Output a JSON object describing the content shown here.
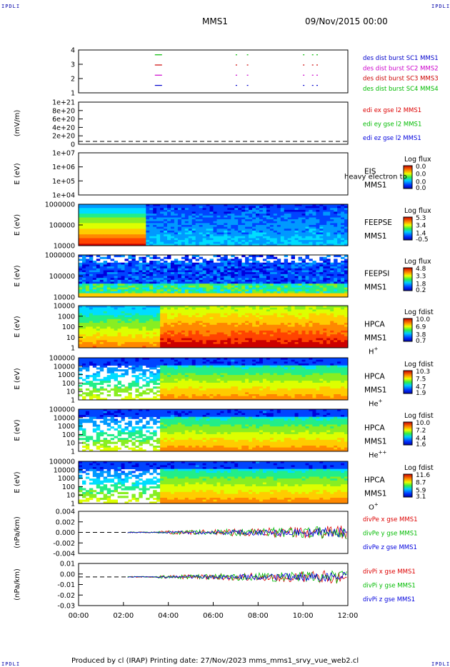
{
  "header": {
    "title": "MMS1",
    "date": "09/Nov/2015 00:00"
  },
  "corner_marks": {
    "text": "IPDLI"
  },
  "footer": {
    "text": "Produced by cl (IRAP)   Printing date: 27/Nov/2023   mms_mms1_srvy_vue_web2.cl"
  },
  "colors": {
    "sc1": "#0000cc",
    "sc2": "#cc00cc",
    "sc3": "#cc0000",
    "sc4": "#00bb00",
    "x": "#dd0000",
    "y": "#00bb00",
    "z": "#0000dd"
  },
  "chart_data": [
    {
      "type": "timeline",
      "ylabel": "",
      "ticks": [
        "4",
        "3",
        "2",
        "1"
      ],
      "legend": [
        {
          "text": "des dist burst SC1 MMS1",
          "color": "#0000cc"
        },
        {
          "text": "des dist burst SC2 MMS2",
          "color": "#cc00cc"
        },
        {
          "text": "des dist burst SC3 MMS3",
          "color": "#cc0000"
        },
        {
          "text": "des dist burst SC4 MMS4",
          "color": "#00bb00"
        }
      ],
      "bursts_hours": [
        3.4,
        7.0,
        7.5,
        10.0,
        10.4,
        10.6
      ]
    },
    {
      "type": "line",
      "ylabel": "(mV/m)",
      "ticks": [
        "1e+21",
        "8e+20",
        "6e+20",
        "4e+20",
        "2e+20",
        "0"
      ],
      "legend": [
        {
          "text": "edi ex gse l2 MMS1",
          "color": "#dd0000"
        },
        {
          "text": "edi ey gse l2 MMS1",
          "color": "#00bb00"
        },
        {
          "text": "edi ez gse l2 MMS1",
          "color": "#0000dd"
        }
      ]
    },
    {
      "type": "heatmap",
      "ylabel": "E (eV)",
      "ticks": [
        "1e+07",
        "1e+06",
        "1e+05",
        "1e+04"
      ],
      "labels": [
        "EIS",
        "MMS1"
      ],
      "overlay": "heavy electron to",
      "cbar_title": "Log flux",
      "cbar_ticks": [
        "0.0",
        "0.0",
        "0.0",
        "0.0"
      ]
    },
    {
      "type": "heatmap",
      "ylabel": "E (eV)",
      "ticks": [
        "1000000",
        "100000",
        "10000"
      ],
      "labels": [
        "FEEPSE",
        "MMS1"
      ],
      "cbar_title": "Log flux",
      "cbar_ticks": [
        "5.3",
        "3.4",
        "1.4",
        "-0.5"
      ]
    },
    {
      "type": "heatmap",
      "ylabel": "E (eV)",
      "ticks": [
        "1000000",
        "100000",
        "10000"
      ],
      "labels": [
        "FEEPSI",
        "MMS1"
      ],
      "cbar_title": "Log flux",
      "cbar_ticks": [
        "4.8",
        "3.3",
        "1.8",
        "0.2"
      ]
    },
    {
      "type": "heatmap",
      "ylabel": "E (eV)",
      "ticks": [
        "10000",
        "1000",
        "100",
        "10",
        "1"
      ],
      "labels": [
        "HPCA",
        "MMS1"
      ],
      "species": {
        "base": "H",
        "sup": "+"
      },
      "cbar_title": "Log fdist",
      "cbar_ticks": [
        "10.0",
        "6.9",
        "3.8",
        "0.7"
      ]
    },
    {
      "type": "heatmap",
      "ylabel": "E (eV)",
      "ticks": [
        "100000",
        "10000",
        "1000",
        "100",
        "10",
        "1"
      ],
      "labels": [
        "HPCA",
        "MMS1"
      ],
      "species": {
        "base": "He",
        "sup": "+"
      },
      "cbar_title": "Log fdist",
      "cbar_ticks": [
        "10.3",
        "7.5",
        "4.7",
        "1.9"
      ]
    },
    {
      "type": "heatmap",
      "ylabel": "E (eV)",
      "ticks": [
        "100000",
        "10000",
        "1000",
        "100",
        "10",
        "1"
      ],
      "labels": [
        "HPCA",
        "MMS1"
      ],
      "species": {
        "base": "He",
        "sup": "++"
      },
      "cbar_title": "Log fdist",
      "cbar_ticks": [
        "10.0",
        "7.2",
        "4.4",
        "1.6"
      ]
    },
    {
      "type": "heatmap",
      "ylabel": "E (eV)",
      "ticks": [
        "100000",
        "10000",
        "1000",
        "100",
        "10",
        "1"
      ],
      "labels": [
        "HPCA",
        "MMS1"
      ],
      "species": {
        "base": "O",
        "sup": "+"
      },
      "cbar_title": "Log fdist",
      "cbar_ticks": [
        "11.6",
        "8.7",
        "5.9",
        "3.1"
      ]
    },
    {
      "type": "line",
      "ylabel": "(nPa/km)",
      "ticks": [
        "0.004",
        "0.002",
        "0.000",
        "-0.002",
        "-0.004"
      ],
      "ylim": [
        -0.005,
        0.005
      ],
      "legend": [
        {
          "text": "divPe x gse MMS1",
          "color": "#dd0000"
        },
        {
          "text": "divPe y gse MMS1",
          "color": "#00bb00"
        },
        {
          "text": "divPe z gse MMS1",
          "color": "#0000dd"
        }
      ]
    },
    {
      "type": "line",
      "ylabel": "(nPa/km)",
      "ticks": [
        "0.01",
        "0.00",
        "-0.01",
        "-0.02",
        "-0.03"
      ],
      "ylim": [
        -0.032,
        0.015
      ],
      "legend": [
        {
          "text": "divPi x gse MMS1",
          "color": "#dd0000"
        },
        {
          "text": "divPi y gse MMS1",
          "color": "#00bb00"
        },
        {
          "text": "divPi z gse MMS1",
          "color": "#0000dd"
        }
      ]
    }
  ],
  "x_axis": {
    "ticks": [
      "00:00",
      "02:00",
      "04:00",
      "06:00",
      "08:00",
      "10:00",
      "12:00"
    ],
    "range_hours": [
      0,
      12
    ]
  }
}
